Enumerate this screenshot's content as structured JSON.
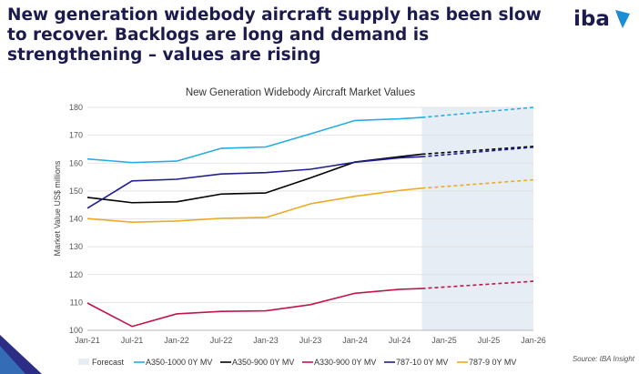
{
  "headline": "New generation widebody aircraft supply has been slow to recover. Backlogs are long and demand is strengthening – values are rising",
  "logo": {
    "text": "iba",
    "brand_color": "#1c1b4d",
    "accent_colors": [
      "#1b8fd6",
      "#2a2a86"
    ]
  },
  "source": "Source: IBA Insight",
  "chart_data": {
    "type": "line",
    "title": "New Generation Widebody Aircraft Market Values",
    "ylabel": "Market Value US$ millions",
    "xlabel": "",
    "ylim": [
      100,
      180
    ],
    "yticks": [
      100,
      110,
      120,
      130,
      140,
      150,
      160,
      170,
      180
    ],
    "categories": [
      "Jan-21",
      "Jul-21",
      "Jan-22",
      "Jul-22",
      "Jan-23",
      "Jul-23",
      "Jan-24",
      "Jul-24",
      "Jan-25",
      "Jul-25",
      "Jan-26"
    ],
    "x": [
      "Jan-21",
      "Jul-21",
      "Jan-22",
      "Jul-22",
      "Jan-23",
      "Jul-23",
      "Jan-24",
      "Jul-24",
      "Oct-24",
      "Jan-26"
    ],
    "forecast": {
      "label": "Forecast",
      "from": "Oct-24",
      "to": "Jan-26",
      "color": "#e6edf4"
    },
    "grid": true,
    "legend_position": "bottom",
    "series": [
      {
        "name": "A350-1000 0Y MV",
        "color": "#25aee3",
        "values": [
          161.5,
          160.2,
          160.7,
          165.3,
          165.8,
          170.5,
          175.3,
          175.9,
          176.4,
          180.0
        ]
      },
      {
        "name": "A350-900 0Y MV",
        "color": "#000000",
        "values": [
          147.7,
          145.8,
          146.1,
          148.9,
          149.3,
          154.7,
          160.4,
          162.3,
          163.2,
          166.0
        ]
      },
      {
        "name": "A330-900 0Y MV",
        "color": "#c0164a",
        "values": [
          109.8,
          101.4,
          105.9,
          106.8,
          107.0,
          109.2,
          113.3,
          114.7,
          115.0,
          117.6
        ]
      },
      {
        "name": "787-10 0Y MV",
        "color": "#1f1f8f",
        "values": [
          143.8,
          153.6,
          154.2,
          156.1,
          156.6,
          157.8,
          160.3,
          161.9,
          162.3,
          165.7
        ]
      },
      {
        "name": "787-9 0Y MV",
        "color": "#eeaa22",
        "values": [
          140.1,
          138.8,
          139.2,
          140.2,
          140.5,
          145.4,
          148.1,
          150.2,
          151.0,
          154.0
        ]
      }
    ]
  }
}
